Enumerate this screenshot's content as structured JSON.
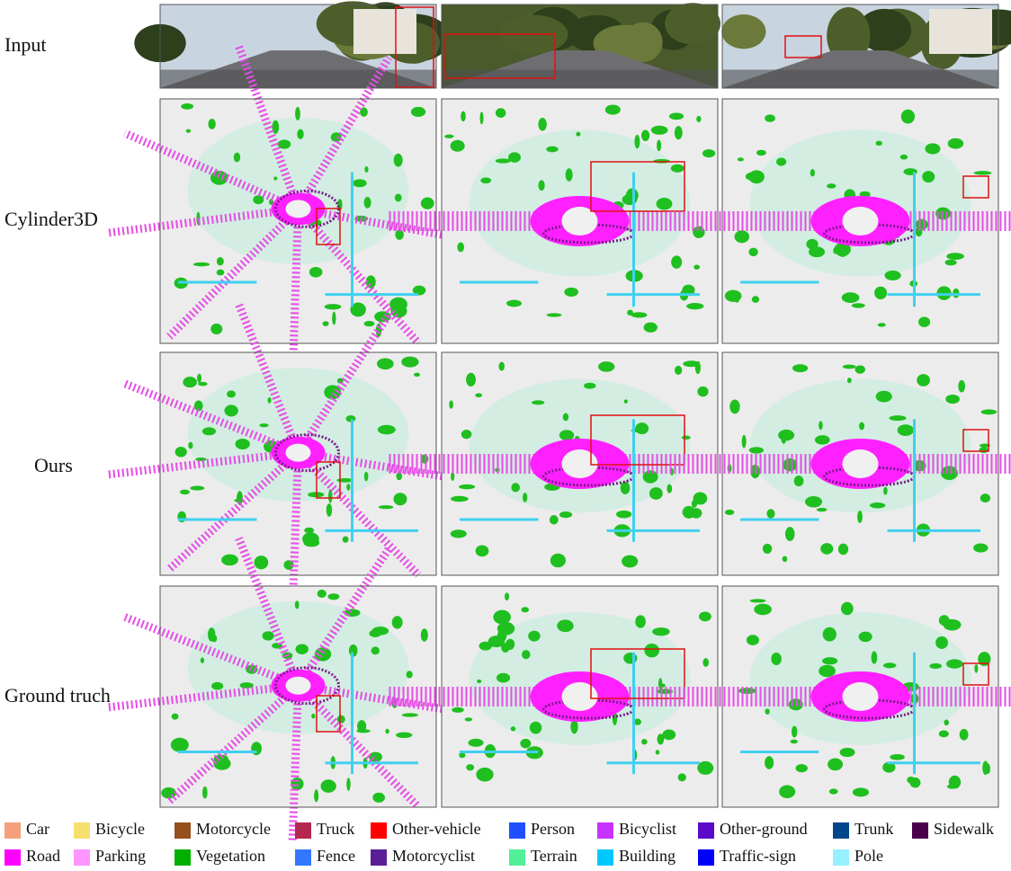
{
  "row_labels": [
    "Input",
    "Cylinder3D",
    "Ours",
    "Ground  truch"
  ],
  "legend": [
    {
      "name": "Car",
      "color": "#f4a07a"
    },
    {
      "name": "Bicycle",
      "color": "#f5e06e"
    },
    {
      "name": "Motorcycle",
      "color": "#96501e"
    },
    {
      "name": "Truck",
      "color": "#b42850"
    },
    {
      "name": "Other-vehicle",
      "color": "#ff0000"
    },
    {
      "name": "Person",
      "color": "#1e50ff"
    },
    {
      "name": "Bicyclist",
      "color": "#c832ff"
    },
    {
      "name": "Other-ground",
      "color": "#5a0ac8"
    },
    {
      "name": "Trunk",
      "color": "#00468c"
    },
    {
      "name": "Sidewalk",
      "color": "#4b004b"
    },
    {
      "name": "Road",
      "color": "#ff00ff"
    },
    {
      "name": "Parking",
      "color": "#ff96ff"
    },
    {
      "name": "Vegetation",
      "color": "#00af00"
    },
    {
      "name": "Fence",
      "color": "#3278ff"
    },
    {
      "name": "Motorcyclist",
      "color": "#5a1e96"
    },
    {
      "name": "Terrain",
      "color": "#50f096"
    },
    {
      "name": "Building",
      "color": "#00c8ff"
    },
    {
      "name": "Traffic-sign",
      "color": "#0000ff"
    },
    {
      "name": "Pole",
      "color": "#96f0ff"
    }
  ]
}
